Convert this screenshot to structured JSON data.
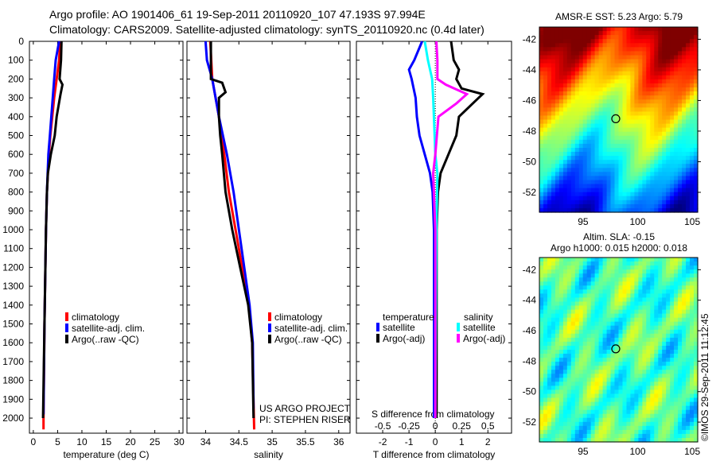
{
  "header": {
    "line1": "Argo profile: AO 1901406_61 19-Sep-2011 20110920_107 47.193S 97.994E",
    "line2": "Climatology: CARS2009. Satellite-adjusted climatology: synTS_20110920.nc (0.4d later)"
  },
  "colors": {
    "climatology": "#ff0000",
    "satellite": "#0000ff",
    "argo": "#000000",
    "s_satellite": "#00ffff",
    "s_argo": "#ff00ff"
  },
  "chart_data": [
    {
      "type": "line",
      "xlabel": "temperature (deg C)",
      "xlim": [
        -0.8,
        30.8
      ],
      "ylim": [
        2080,
        0
      ],
      "xticks": [
        0,
        5,
        10,
        15,
        20,
        25,
        30
      ],
      "yticks": [
        0,
        100,
        200,
        300,
        400,
        500,
        600,
        700,
        800,
        900,
        1000,
        1100,
        1200,
        1300,
        1400,
        1500,
        1600,
        1700,
        1800,
        1900,
        2000
      ],
      "legend": [
        "climatology",
        "satellite-adj. clim.",
        "Argo(..raw -QC)"
      ],
      "series": [
        {
          "name": "climatology",
          "color": "#ff0000",
          "depth": [
            0,
            100,
            200,
            300,
            400,
            500,
            600,
            700,
            800,
            1000,
            1500,
            2000,
            2060
          ],
          "values": [
            5.5,
            5.3,
            4.8,
            4.3,
            3.9,
            3.5,
            3.2,
            3.0,
            2.8,
            2.6,
            2.3,
            2.1,
            2.1
          ]
        },
        {
          "name": "satellite-adj. clim.",
          "color": "#0000ff",
          "depth": [
            0,
            100,
            200,
            300,
            400,
            500,
            600,
            800,
            1000,
            1500,
            1980
          ],
          "values": [
            5.3,
            4.6,
            4.3,
            4.0,
            3.7,
            3.4,
            3.1,
            2.8,
            2.6,
            2.3,
            2.1
          ]
        },
        {
          "name": "Argo(..raw -QC)",
          "color": "#000000",
          "depth": [
            0,
            100,
            200,
            230,
            280,
            400,
            500,
            600,
            700,
            800,
            1000,
            1500,
            2000
          ],
          "values": [
            5.8,
            5.7,
            5.4,
            6.0,
            5.6,
            4.8,
            4.4,
            3.6,
            3.0,
            2.8,
            2.6,
            2.3,
            2.0
          ]
        }
      ]
    },
    {
      "type": "line",
      "xlabel": "salinity",
      "xlim": [
        33.72,
        36.17
      ],
      "ylim": [
        2080,
        0
      ],
      "xticks": [
        34,
        34.5,
        35,
        35.5,
        36
      ],
      "legend": [
        "climatology",
        "satellite-adj. clim.",
        "Argo(..raw -QC)"
      ],
      "annotation": [
        "US ARGO PROJECT",
        "PI: STEPHEN RISER"
      ],
      "series": [
        {
          "name": "climatology",
          "color": "#ff0000",
          "depth": [
            0,
            200,
            300,
            400,
            600,
            800,
            1000,
            1200,
            1400,
            1600,
            2060
          ],
          "values": [
            34.07,
            34.1,
            34.15,
            34.2,
            34.28,
            34.35,
            34.45,
            34.55,
            34.65,
            34.7,
            34.73
          ]
        },
        {
          "name": "satellite-adj. clim.",
          "color": "#0000ff",
          "depth": [
            0,
            100,
            200,
            400,
            600,
            800,
            1000,
            1200,
            1400,
            1600,
            1950
          ],
          "values": [
            34.0,
            34.02,
            34.1,
            34.2,
            34.32,
            34.42,
            34.5,
            34.58,
            34.66,
            34.71,
            34.72
          ]
        },
        {
          "name": "Argo(..raw -QC)",
          "color": "#000000",
          "depth": [
            0,
            200,
            220,
            270,
            300,
            400,
            500,
            600,
            800,
            1000,
            1200,
            1400,
            1600,
            2000
          ],
          "values": [
            34.08,
            34.08,
            34.25,
            34.3,
            34.2,
            34.2,
            34.22,
            34.25,
            34.3,
            34.4,
            34.52,
            34.64,
            34.7,
            34.72
          ]
        }
      ]
    },
    {
      "type": "line",
      "xlabel": "T difference from climatology",
      "xlabel2": "S difference from climatology",
      "xlim": [
        -3,
        2.9
      ],
      "ylim": [
        2080,
        0
      ],
      "xticks": [
        -2,
        -1,
        0,
        1,
        2
      ],
      "xticks2": [
        -0.5,
        -0.25,
        0,
        0.25,
        0.5
      ],
      "xticks2_labels": [
        "-0.5",
        "-0.25",
        "0",
        "0.25",
        "0.5"
      ],
      "legend_t_title": "temperature",
      "legend_s_title": "salinity",
      "legend": [
        "satellite",
        "Argo(-adj)",
        "satellite",
        "Argo(-adj)"
      ],
      "series": [
        {
          "name": "T satellite",
          "color": "#0000ff",
          "axis": "T",
          "depth": [
            0,
            100,
            150,
            200,
            300,
            400,
            500,
            600,
            700,
            800,
            1000,
            2000
          ],
          "values": [
            -0.5,
            -0.8,
            -1.0,
            -0.9,
            -0.75,
            -0.7,
            -0.6,
            -0.4,
            -0.2,
            -0.1,
            -0.05,
            -0.05
          ]
        },
        {
          "name": "T Argo(-adj)",
          "color": "#000000",
          "axis": "T",
          "depth": [
            0,
            100,
            150,
            200,
            250,
            280,
            320,
            400,
            500,
            600,
            700,
            800,
            1000,
            2000
          ],
          "values": [
            0.6,
            0.7,
            0.9,
            0.8,
            1.0,
            1.8,
            1.5,
            0.9,
            0.8,
            0.5,
            0.2,
            0.1,
            0.05,
            0.05
          ]
        },
        {
          "name": "S satellite",
          "color": "#00ffff",
          "axis": "S",
          "depth": [
            0,
            100,
            200,
            300,
            600,
            700,
            1000,
            2000
          ],
          "values": [
            -0.1,
            -0.07,
            -0.03,
            -0.02,
            0.0,
            0.02,
            0.01,
            0.0
          ]
        },
        {
          "name": "S Argo(-adj)",
          "color": "#ff00ff",
          "axis": "S",
          "depth": [
            0,
            100,
            200,
            230,
            280,
            330,
            400,
            600,
            700,
            1000,
            2000
          ],
          "values": [
            0.01,
            0.02,
            0.02,
            0.1,
            0.3,
            0.2,
            0.03,
            0.0,
            -0.02,
            0.0,
            0.0
          ]
        }
      ]
    },
    {
      "type": "heatmap",
      "title": "AMSR-E SST: 5.23 Argo: 5.79",
      "xlim": [
        91,
        105.5
      ],
      "ylim": [
        -53.3,
        -41.2
      ],
      "xticks": [
        95,
        100,
        105
      ],
      "yticks": [
        -42,
        -44,
        -46,
        -48,
        -50,
        -52
      ],
      "marker": [
        97.994,
        -47.193
      ]
    },
    {
      "type": "heatmap",
      "title": "Altim. SLA: -0.15",
      "subtitle": "Argo h1000: 0.015 h2000: 0.018",
      "xlim": [
        91,
        105.5
      ],
      "ylim": [
        -53.3,
        -41.2
      ],
      "xticks": [
        95,
        100,
        105
      ],
      "yticks": [
        -42,
        -44,
        -46,
        -48,
        -50,
        -52
      ],
      "marker": [
        97.994,
        -47.193
      ]
    }
  ],
  "footer": {
    "credit": "©IMOS 29-Sep-2011 11:12:45"
  }
}
